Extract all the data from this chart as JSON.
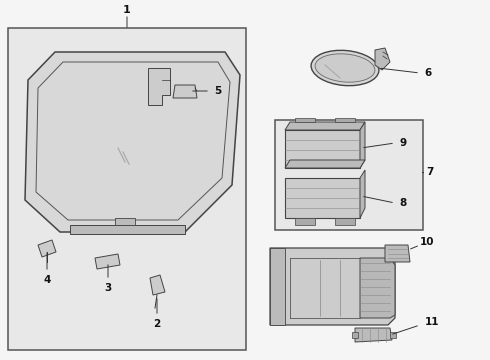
{
  "bg_color": "#f5f5f5",
  "box_fill": "#e8e8e8",
  "white": "#ffffff",
  "lc": "#333333",
  "thin": 0.7,
  "med": 1.0,
  "thick": 1.3
}
